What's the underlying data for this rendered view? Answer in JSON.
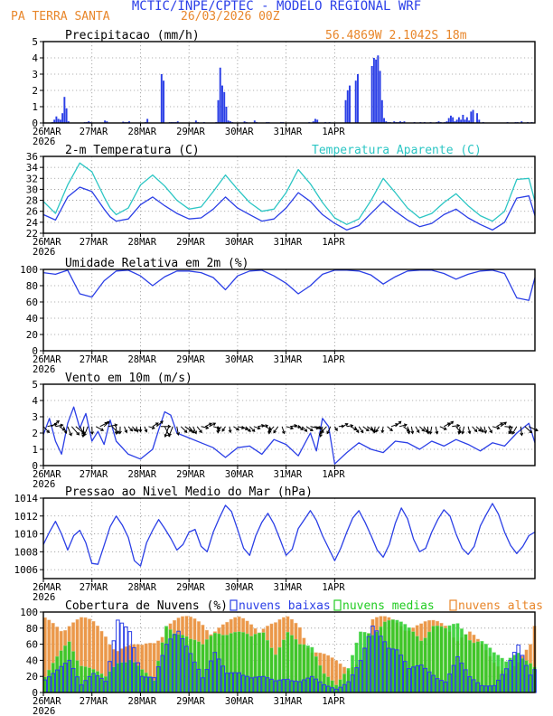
{
  "header": {
    "title": "MCTIC/INPE/CPTEC - MODELO REGIONAL WRF",
    "location": "PA TERRA SANTA",
    "run": "26/03/2026 00Z"
  },
  "colors": {
    "title": "#2a3ee8",
    "orange": "#e8862a",
    "blue": "#2b3fe6",
    "cyan": "#2cc6c4",
    "green": "#22cc22",
    "black": "#000000",
    "grid": "#9a9a9a"
  },
  "time_axis": {
    "labels": [
      "26MAR",
      "27MAR",
      "28MAR",
      "29MAR",
      "30MAR",
      "31MAR",
      "1APR"
    ],
    "year": "2026",
    "days": 7
  },
  "chart_data": [
    {
      "id": "precip",
      "type": "bar",
      "title": "Precipitacao (mm/h)",
      "coords": "56.4869W 2.1042S 18m",
      "ylim": [
        0,
        5
      ],
      "yticks": [
        0,
        1,
        2,
        3,
        4,
        5
      ],
      "x": [
        4,
        5,
        6,
        7,
        8,
        9,
        10,
        11,
        12,
        20,
        21,
        22,
        23,
        30,
        31,
        39,
        40,
        41,
        42,
        50,
        51,
        58,
        59,
        62,
        63,
        64,
        65,
        66,
        75,
        76,
        79,
        85,
        86,
        87,
        88,
        89,
        90,
        91,
        92,
        93,
        99,
        100,
        104,
        105,
        110,
        111,
        117,
        118,
        131,
        133,
        134,
        135,
        139,
        141,
        149,
        150,
        151,
        154,
        155,
        162,
        163,
        164,
        165,
        166,
        167,
        168,
        169,
        170,
        171,
        173,
        174,
        175,
        176,
        177,
        178,
        183,
        186,
        188,
        191,
        194,
        195,
        196,
        198,
        199,
        200,
        201,
        202,
        203,
        204,
        205,
        206,
        207,
        208,
        209,
        210,
        211,
        212,
        214,
        215,
        217,
        229,
        233,
        234,
        236,
        239,
        241
      ],
      "values": [
        0.05,
        0.2,
        0.4,
        0.25,
        0.2,
        0.6,
        1.6,
        0.9,
        0.1,
        0.05,
        0.05,
        0.1,
        0.05,
        0.15,
        0.1,
        0.08,
        0.05,
        0.05,
        0.1,
        0.05,
        0.25,
        3.0,
        2.6,
        0.05,
        0.05,
        0.05,
        0.05,
        0.1,
        0.15,
        0.05,
        0.05,
        0.05,
        1.4,
        3.4,
        2.3,
        1.9,
        1.0,
        0.15,
        0.1,
        0.05,
        0.1,
        0.05,
        0.15,
        0.05,
        0.05,
        0.05,
        0.05,
        0.05,
        0.05,
        0.1,
        0.25,
        0.2,
        0.05,
        0.05,
        1.4,
        2.0,
        2.3,
        2.6,
        3.0,
        3.5,
        4.0,
        3.9,
        4.15,
        3.2,
        1.4,
        0.3,
        0.1,
        0.05,
        0.05,
        0.1,
        0.05,
        0.05,
        0.1,
        0.05,
        0.1,
        0.05,
        0.05,
        0.05,
        0.05,
        0.05,
        0.1,
        0.05,
        0.05,
        0.1,
        0.3,
        0.45,
        0.35,
        0.1,
        0.2,
        0.35,
        0.2,
        0.5,
        0.2,
        0.35,
        0.15,
        0.7,
        0.8,
        0.6,
        0.2,
        0.05,
        0.05,
        0.05,
        0.05,
        0.1,
        0.05,
        0.05
      ]
    },
    {
      "id": "temp",
      "type": "line",
      "title": "2-m Temperatura (C)",
      "title2": "Temperatura Aparente (C)",
      "ylim": [
        22,
        36
      ],
      "yticks": [
        22,
        24,
        26,
        28,
        30,
        32,
        34,
        36
      ],
      "series": [
        {
          "name": "2-m Temperatura (C)",
          "color": "blue",
          "x": [
            0,
            6,
            12,
            18,
            24,
            30,
            33,
            36,
            42,
            48,
            54,
            60,
            66,
            72,
            78,
            84,
            90,
            96,
            102,
            108,
            114,
            120,
            126,
            132,
            138,
            144,
            150,
            156,
            162,
            168,
            174,
            180,
            186,
            192,
            198,
            204,
            210,
            216,
            222,
            228,
            234,
            240,
            243
          ],
          "values": [
            25.4,
            24.4,
            28.6,
            30.4,
            29.6,
            26.4,
            25.0,
            24.2,
            24.6,
            27.2,
            28.6,
            27.0,
            25.6,
            24.6,
            24.8,
            26.4,
            28.6,
            26.6,
            25.4,
            24.2,
            24.6,
            26.6,
            29.4,
            27.8,
            25.4,
            23.8,
            22.6,
            23.4,
            25.6,
            27.8,
            26.0,
            24.4,
            23.2,
            23.8,
            25.4,
            26.4,
            24.8,
            23.6,
            22.6,
            24.0,
            28.4,
            28.8,
            25.2
          ]
        },
        {
          "name": "Temperatura Aparente (C)",
          "color": "cyan",
          "x": [
            0,
            6,
            12,
            18,
            24,
            30,
            33,
            36,
            42,
            48,
            54,
            60,
            66,
            72,
            78,
            84,
            90,
            96,
            102,
            108,
            114,
            120,
            126,
            132,
            138,
            144,
            150,
            156,
            162,
            168,
            174,
            180,
            186,
            192,
            198,
            204,
            210,
            216,
            222,
            228,
            234,
            240,
            243
          ],
          "values": [
            27.8,
            25.6,
            30.8,
            34.8,
            33.2,
            28.6,
            26.6,
            25.4,
            26.6,
            30.8,
            32.6,
            30.6,
            28.0,
            26.4,
            26.8,
            29.6,
            32.6,
            30.0,
            27.6,
            26.0,
            26.4,
            29.4,
            33.6,
            31.0,
            27.6,
            24.8,
            23.6,
            24.6,
            28.0,
            32.0,
            29.4,
            26.6,
            24.8,
            25.6,
            27.6,
            29.2,
            27.0,
            25.2,
            24.2,
            26.0,
            31.8,
            32.0,
            27.8
          ]
        }
      ]
    },
    {
      "id": "rh",
      "type": "line",
      "title": "Umidade Relativa em 2m (%)",
      "ylim": [
        0,
        100
      ],
      "yticks": [
        0,
        20,
        40,
        60,
        80,
        100
      ],
      "series": [
        {
          "name": "Umidade Relativa em 2m (%)",
          "color": "blue",
          "x": [
            0,
            6,
            12,
            18,
            24,
            30,
            36,
            42,
            48,
            54,
            60,
            66,
            72,
            78,
            84,
            90,
            96,
            102,
            108,
            114,
            120,
            126,
            132,
            138,
            144,
            150,
            156,
            162,
            168,
            174,
            180,
            186,
            192,
            198,
            204,
            210,
            216,
            222,
            228,
            234,
            240,
            243
          ],
          "values": [
            96,
            94,
            99,
            70,
            66,
            86,
            98,
            99,
            92,
            80,
            91,
            98,
            98,
            96,
            90,
            75,
            92,
            98,
            99,
            92,
            83,
            70,
            80,
            94,
            99,
            99,
            98,
            93,
            82,
            91,
            98,
            99,
            99,
            95,
            88,
            94,
            98,
            99,
            95,
            65,
            62,
            90
          ]
        }
      ]
    },
    {
      "id": "wind",
      "type": "line",
      "title": "Vento em 10m (m/s)",
      "ylim": [
        0,
        5
      ],
      "yticks": [
        0,
        1,
        2,
        3,
        4,
        5
      ],
      "barb_level": 2.4,
      "series": [
        {
          "name": "Vento em 10m (m/s)",
          "color": "blue",
          "x": [
            0,
            3,
            6,
            9,
            12,
            15,
            18,
            21,
            24,
            27,
            30,
            33,
            36,
            42,
            48,
            54,
            57,
            60,
            63,
            66,
            72,
            78,
            84,
            90,
            96,
            102,
            108,
            114,
            120,
            126,
            132,
            135,
            138,
            141,
            144,
            150,
            156,
            162,
            168,
            174,
            180,
            186,
            192,
            198,
            204,
            210,
            216,
            222,
            228,
            234,
            240,
            243
          ],
          "values": [
            1.9,
            2.9,
            1.5,
            0.7,
            2.6,
            3.6,
            2.3,
            3.2,
            1.5,
            2.1,
            1.3,
            2.8,
            1.5,
            0.7,
            0.4,
            1.0,
            2.2,
            3.3,
            3.1,
            2.0,
            1.7,
            1.4,
            1.1,
            0.5,
            1.1,
            1.2,
            0.7,
            1.6,
            1.3,
            0.6,
            2.0,
            0.9,
            2.9,
            2.4,
            0.1,
            0.8,
            1.4,
            1.0,
            0.8,
            1.5,
            1.4,
            1.0,
            1.5,
            1.2,
            1.6,
            1.3,
            0.9,
            1.4,
            1.2,
            2.0,
            2.6,
            1.4
          ]
        }
      ]
    },
    {
      "id": "pres",
      "type": "line",
      "title": "Pressao ao Nivel Medio do Mar (hPa)",
      "ylim": [
        1005,
        1014
      ],
      "yticks": [
        1006,
        1008,
        1010,
        1012,
        1014
      ],
      "series": [
        {
          "name": "Pressao ao Nivel Medio do Mar (hPa)",
          "color": "blue",
          "x": [
            0,
            3,
            6,
            9,
            12,
            15,
            18,
            21,
            24,
            27,
            30,
            33,
            36,
            39,
            42,
            45,
            48,
            51,
            54,
            57,
            60,
            63,
            66,
            69,
            72,
            75,
            78,
            81,
            84,
            87,
            90,
            93,
            96,
            99,
            102,
            105,
            108,
            111,
            114,
            117,
            120,
            123,
            126,
            129,
            132,
            135,
            138,
            141,
            144,
            147,
            150,
            153,
            156,
            159,
            162,
            165,
            168,
            171,
            174,
            177,
            180,
            183,
            186,
            189,
            192,
            195,
            198,
            201,
            204,
            207,
            210,
            213,
            216,
            219,
            222,
            225,
            228,
            231,
            234,
            237,
            240,
            243
          ],
          "values": [
            1008.8,
            1010.2,
            1011.4,
            1010.0,
            1008.2,
            1009.8,
            1010.4,
            1009.0,
            1006.7,
            1006.6,
            1008.7,
            1010.8,
            1012.0,
            1011.0,
            1009.6,
            1007.0,
            1006.4,
            1009.0,
            1010.4,
            1011.6,
            1010.6,
            1009.5,
            1008.2,
            1008.8,
            1010.2,
            1010.5,
            1008.6,
            1008.0,
            1010.2,
            1011.8,
            1013.2,
            1012.5,
            1010.5,
            1008.4,
            1007.6,
            1009.8,
            1011.3,
            1012.3,
            1011.1,
            1009.4,
            1007.6,
            1008.3,
            1010.6,
            1011.6,
            1012.6,
            1011.5,
            1009.8,
            1008.4,
            1007.0,
            1008.4,
            1010.2,
            1011.8,
            1012.6,
            1011.3,
            1009.8,
            1008.2,
            1007.4,
            1008.8,
            1011.2,
            1012.9,
            1011.7,
            1009.4,
            1008.0,
            1008.4,
            1010.2,
            1011.6,
            1012.7,
            1012.0,
            1010.0,
            1008.4,
            1007.7,
            1008.6,
            1010.9,
            1012.2,
            1013.4,
            1012.2,
            1010.2,
            1008.7,
            1007.8,
            1008.6,
            1009.8,
            1010.2
          ]
        }
      ]
    },
    {
      "id": "clouds",
      "type": "bar",
      "title": "Cobertura de Nuvens (%)",
      "ylim": [
        0,
        100
      ],
      "yticks": [
        0,
        20,
        40,
        60,
        80,
        100
      ],
      "series": [
        {
          "name": "nuvens baixas",
          "color": "blue",
          "x": [
            0,
            12,
            18,
            24,
            30,
            36,
            42,
            48,
            54,
            60,
            66,
            72,
            78,
            84,
            90,
            96,
            102,
            108,
            114,
            120,
            126,
            132,
            138,
            144,
            150,
            156,
            162,
            168,
            174,
            180,
            186,
            192,
            198,
            204,
            210,
            216,
            222,
            228,
            234,
            240,
            243
          ],
          "values": [
            20,
            40,
            10,
            30,
            15,
            90,
            80,
            25,
            20,
            60,
            80,
            60,
            20,
            50,
            25,
            30,
            20,
            20,
            15,
            20,
            15,
            20,
            10,
            5,
            15,
            40,
            85,
            75,
            60,
            30,
            35,
            25,
            15,
            45,
            20,
            10,
            10,
            30,
            60,
            25,
            40
          ]
        },
        {
          "name": "nuvens medias",
          "color": "green",
          "x": [
            0,
            12,
            18,
            24,
            30,
            36,
            42,
            48,
            54,
            60,
            66,
            72,
            78,
            84,
            90,
            96,
            102,
            108,
            114,
            120,
            126,
            132,
            138,
            144,
            150,
            156,
            162,
            168,
            174,
            180,
            186,
            192,
            198,
            204,
            210,
            216,
            222,
            228,
            234,
            240,
            243
          ],
          "values": [
            20,
            70,
            40,
            30,
            20,
            40,
            50,
            30,
            15,
            90,
            90,
            70,
            60,
            80,
            90,
            80,
            70,
            80,
            60,
            80,
            60,
            60,
            30,
            10,
            30,
            80,
            90,
            95,
            90,
            85,
            80,
            90,
            80,
            90,
            80,
            70,
            50,
            40,
            60,
            40,
            30
          ]
        },
        {
          "name": "nuvens altas",
          "color": "orange",
          "x": [
            0,
            12,
            18,
            24,
            30,
            36,
            42,
            48,
            54,
            60,
            66,
            72,
            78,
            84,
            90,
            96,
            102,
            108,
            114,
            120,
            126,
            132,
            138,
            144,
            150,
            156,
            162,
            168,
            174,
            180,
            186,
            192,
            198,
            204,
            210,
            216,
            222,
            228,
            234,
            240,
            243
          ],
          "values": [
            95,
            95,
            95,
            90,
            80,
            60,
            60,
            60,
            70,
            95,
            95,
            95,
            95,
            90,
            90,
            95,
            95,
            95,
            90,
            95,
            90,
            60,
            50,
            40,
            30,
            50,
            95,
            95,
            95,
            95,
            90,
            90,
            90,
            80,
            80,
            60,
            40,
            30,
            40,
            60,
            95
          ]
        }
      ]
    }
  ]
}
